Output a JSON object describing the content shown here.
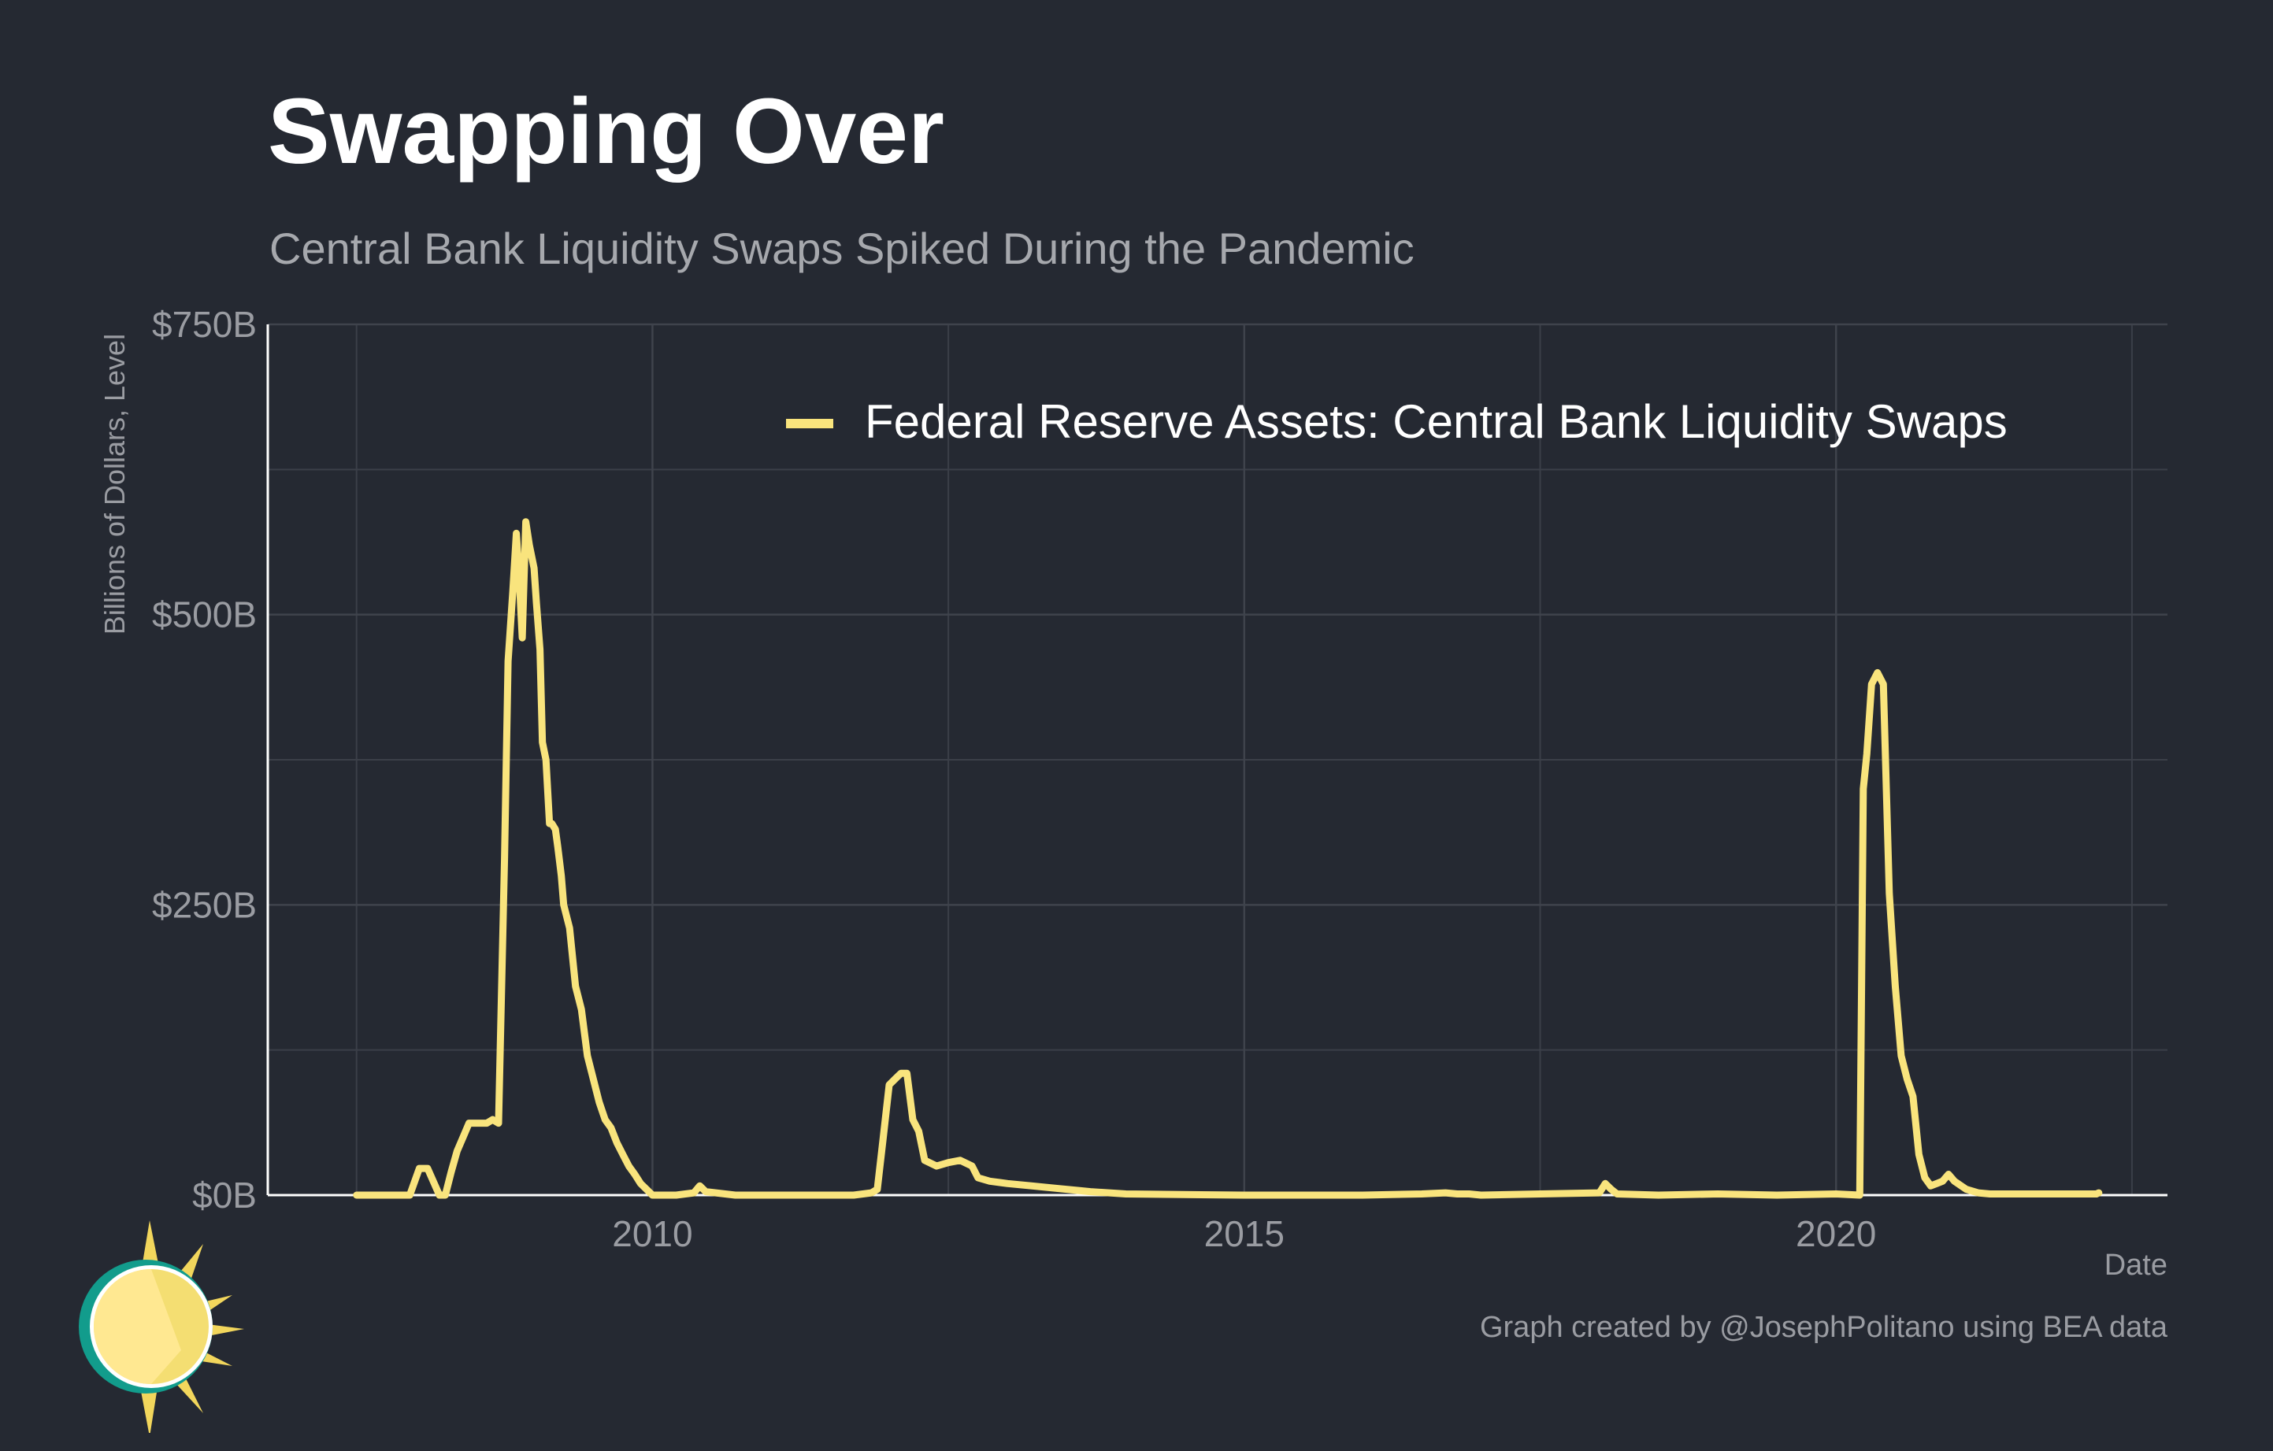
{
  "title": "Swapping Over",
  "subtitle": "Central Bank Liquidity Swaps Spiked During the Pandemic",
  "caption": "Graph created by @JosephPolitano using BEA data",
  "colors": {
    "background": "#252932",
    "line": "#f9e47d",
    "grid": "#3b3f48",
    "axis": "#ffffff",
    "text_muted": "#9a9ca2"
  },
  "chart_data": {
    "type": "line",
    "title": "Swapping Over",
    "subtitle": "Central Bank Liquidity Swaps Spiked During the Pandemic",
    "xlabel": "Date",
    "ylabel": "Billions of Dollars, Level",
    "xlim": [
      2006.75,
      2022.8
    ],
    "ylim": [
      0,
      750
    ],
    "x_ticks": [
      2010,
      2015,
      2020
    ],
    "x_tick_labels": [
      "2010",
      "2015",
      "2020"
    ],
    "y_ticks": [
      0,
      250,
      500,
      750
    ],
    "y_tick_labels": [
      "$0B",
      "$250B",
      "$500B",
      "$750B"
    ],
    "grid": true,
    "legend_position": "top-right",
    "series": [
      {
        "name": "Federal Reserve Assets: Central Bank Liquidity Swaps",
        "x": [
          2007.5,
          2007.95,
          2008.03,
          2008.05,
          2008.1,
          2008.2,
          2008.25,
          2008.3,
          2008.35,
          2008.4,
          2008.45,
          2008.5,
          2008.55,
          2008.6,
          2008.65,
          2008.7,
          2008.75,
          2008.78,
          2008.82,
          2008.85,
          2008.87,
          2008.9,
          2008.93,
          2008.96,
          2009.0,
          2009.02,
          2009.05,
          2009.07,
          2009.1,
          2009.13,
          2009.15,
          2009.18,
          2009.2,
          2009.23,
          2009.25,
          2009.3,
          2009.35,
          2009.4,
          2009.45,
          2009.5,
          2009.55,
          2009.6,
          2009.65,
          2009.7,
          2009.75,
          2009.8,
          2009.85,
          2009.9,
          2009.95,
          2010.0,
          2010.1,
          2010.2,
          2010.35,
          2010.4,
          2010.45,
          2010.7,
          2011.0,
          2011.5,
          2011.7,
          2011.85,
          2011.9,
          2011.95,
          2012.0,
          2012.05,
          2012.1,
          2012.15,
          2012.2,
          2012.25,
          2012.3,
          2012.4,
          2012.5,
          2012.6,
          2012.7,
          2012.75,
          2012.85,
          2013.0,
          2013.2,
          2013.3,
          2013.4,
          2013.6,
          2013.7,
          2014.0,
          2015.0,
          2016.0,
          2016.5,
          2016.7,
          2016.8,
          2016.9,
          2017.0,
          2017.5,
          2018.0,
          2018.05,
          2018.1,
          2018.15,
          2018.5,
          2019.0,
          2019.5,
          2020.0,
          2020.2,
          2020.23,
          2020.26,
          2020.3,
          2020.35,
          2020.4,
          2020.45,
          2020.5,
          2020.55,
          2020.6,
          2020.65,
          2020.7,
          2020.75,
          2020.8,
          2020.85,
          2020.9,
          2020.95,
          2021.0,
          2021.1,
          2021.2,
          2021.3,
          2021.4,
          2021.5,
          2021.6,
          2022.0,
          2022.2,
          2022.22
        ],
        "values": [
          0,
          0,
          23,
          23,
          23,
          0,
          0,
          20,
          38,
          50,
          62,
          62,
          62,
          62,
          65,
          62,
          290,
          460,
          520,
          570,
          540,
          480,
          580,
          560,
          540,
          510,
          470,
          390,
          375,
          320,
          320,
          315,
          300,
          275,
          250,
          230,
          180,
          160,
          120,
          100,
          80,
          65,
          58,
          45,
          35,
          25,
          18,
          10,
          5,
          0,
          0,
          0,
          2,
          8,
          3,
          0,
          0,
          0,
          0,
          2,
          5,
          50,
          95,
          100,
          105,
          105,
          65,
          55,
          30,
          25,
          28,
          30,
          25,
          15,
          12,
          10,
          8,
          7,
          6,
          4,
          3,
          1,
          0,
          0,
          1,
          2,
          1,
          1,
          0,
          1,
          2,
          10,
          5,
          1,
          0,
          1,
          0,
          1,
          0,
          350,
          380,
          440,
          450,
          440,
          260,
          180,
          120,
          100,
          85,
          35,
          15,
          8,
          10,
          12,
          18,
          12,
          5,
          2,
          1,
          1,
          1,
          1,
          1,
          1,
          2
        ]
      }
    ]
  }
}
